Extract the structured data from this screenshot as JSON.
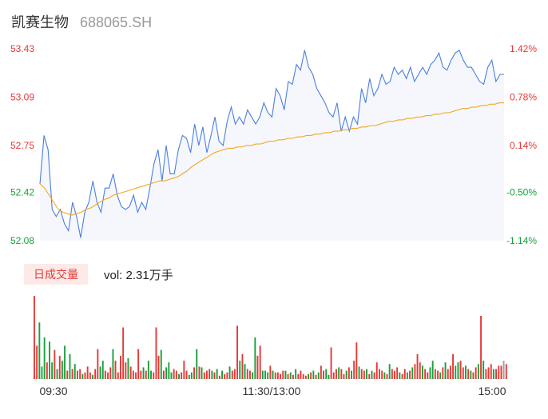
{
  "stock": {
    "name": "凯赛生物",
    "code": "688065.SH"
  },
  "volume_panel": {
    "tab_label": "日成交量",
    "vol_text": "vol: 2.31万手"
  },
  "colors": {
    "price_line": "#4a7fe0",
    "avg_line": "#f5a623",
    "up": "#e53935",
    "down": "#1a9f3c",
    "flat": "#9e9e9e",
    "fill": "#f5f7fd"
  },
  "chart_data": [
    {
      "type": "line",
      "title": "",
      "y_left_ticks": [
        "53.43",
        "53.09",
        "52.75",
        "52.42",
        "52.08"
      ],
      "y_right_ticks": [
        "1.42%",
        "0.78%",
        "0.14%",
        "-0.50%",
        "-1.14%"
      ],
      "y_left_tick_values": [
        53.43,
        53.09,
        52.75,
        52.42,
        52.08
      ],
      "ylim": [
        52.08,
        53.43
      ],
      "prev_close": 52.67,
      "x_ticks": [
        "09:30",
        "11:30/13:00",
        "15:00"
      ],
      "series": [
        {
          "values": [
            52.48,
            52.82,
            52.72,
            52.3,
            52.25,
            52.3,
            52.2,
            52.15,
            52.35,
            52.25,
            52.1,
            52.28,
            52.35,
            52.5,
            52.35,
            52.28,
            52.45,
            52.45,
            52.55,
            52.4,
            52.32,
            52.3,
            52.32,
            52.4,
            52.28,
            52.35,
            52.3,
            52.45,
            52.62,
            52.72,
            52.5,
            52.75,
            52.55,
            52.55,
            52.72,
            52.82,
            52.8,
            52.7,
            52.9,
            52.75,
            52.88,
            52.7,
            52.82,
            52.95,
            52.78,
            52.75,
            52.92,
            53.02,
            52.9,
            52.95,
            52.9,
            53.0,
            52.95,
            52.9,
            52.95,
            53.05,
            52.98,
            52.95,
            53.15,
            53.1,
            53.0,
            53.2,
            53.18,
            53.32,
            53.28,
            53.42,
            53.3,
            53.25,
            53.15,
            53.1,
            53.05,
            52.98,
            52.95,
            53.05,
            52.85,
            52.95,
            52.85,
            52.95,
            52.9,
            53.15,
            53.05,
            53.22,
            53.1,
            53.15,
            53.25,
            53.18,
            53.2,
            53.3,
            53.25,
            53.28,
            53.22,
            53.3,
            53.2,
            53.25,
            53.3,
            53.25,
            53.32,
            53.35,
            53.4,
            53.3,
            53.28,
            53.35,
            53.4,
            53.42,
            53.35,
            53.3,
            53.3,
            53.25,
            53.2,
            53.18,
            53.3,
            53.35,
            53.2,
            53.25,
            53.25
          ]
        },
        {
          "values": [
            52.48,
            52.45,
            52.4,
            52.35,
            52.3,
            52.28,
            52.27,
            52.26,
            52.27,
            52.28,
            52.3,
            52.31,
            52.33,
            52.35,
            52.37,
            52.38,
            52.4,
            52.41,
            52.42,
            52.43,
            52.44,
            52.45,
            52.46,
            52.47,
            52.48,
            52.49,
            52.5,
            52.5,
            52.51,
            52.52,
            52.53,
            52.55,
            52.57,
            52.6,
            52.62,
            52.64,
            52.66,
            52.68,
            52.7,
            52.71,
            52.72,
            52.73,
            52.73,
            52.74,
            52.74,
            52.75,
            52.75,
            52.76,
            52.76,
            52.77,
            52.78,
            52.78,
            52.79,
            52.79,
            52.8,
            52.8,
            52.81,
            52.81,
            52.82,
            52.82,
            52.83,
            52.83,
            52.84,
            52.84,
            52.85,
            52.85,
            52.86,
            52.86,
            52.87,
            52.87,
            52.88,
            52.88,
            52.89,
            52.89,
            52.9,
            52.91,
            52.92,
            52.92,
            52.93,
            52.93,
            52.94,
            52.94,
            52.95,
            52.95,
            52.96,
            52.96,
            52.97,
            52.97,
            52.98,
            52.98,
            52.99,
            53.0,
            53.01,
            53.01,
            53.02,
            53.02,
            53.03,
            53.03,
            53.04,
            53.04,
            53.05,
            53.05
          ]
        }
      ]
    },
    {
      "type": "bar",
      "title": "",
      "values": [
        100,
        40,
        68,
        15,
        50,
        20,
        45,
        20,
        35,
        12,
        28,
        22,
        40,
        10,
        30,
        12,
        18,
        10,
        12,
        6,
        8,
        15,
        8,
        5,
        12,
        36,
        15,
        22,
        10,
        8,
        14,
        36,
        22,
        8,
        28,
        62,
        20,
        25,
        15,
        10,
        8,
        36,
        10,
        14,
        10,
        22,
        10,
        8,
        62,
        28,
        35,
        10,
        14,
        20,
        8,
        12,
        10,
        6,
        8,
        22,
        10,
        5,
        8,
        14,
        36,
        15,
        14,
        8,
        10,
        12,
        10,
        8,
        12,
        4,
        10,
        6,
        8,
        15,
        10,
        12,
        64,
        22,
        30,
        18,
        12,
        10,
        8,
        50,
        28,
        40,
        10,
        10,
        8,
        16,
        10,
        8,
        8,
        6,
        10,
        10,
        6,
        8,
        5,
        12,
        6,
        10,
        6,
        4,
        6,
        8,
        10,
        5,
        8,
        16,
        10,
        12,
        5,
        38,
        8,
        12,
        14,
        12,
        6,
        10,
        14,
        10,
        22,
        44,
        15,
        12,
        10,
        12,
        6,
        10,
        8,
        20,
        12,
        10,
        8,
        6,
        18,
        12,
        10,
        14,
        8,
        6,
        12,
        8,
        10,
        14,
        18,
        30,
        20,
        16,
        12,
        8,
        14,
        22,
        12,
        10,
        8,
        14,
        20,
        12,
        16,
        30,
        16,
        20,
        22,
        14,
        16,
        12,
        10,
        8,
        14,
        18,
        76,
        22,
        12,
        14,
        18,
        12,
        12,
        16,
        16,
        22,
        18
      ],
      "colors": [
        "up",
        "up",
        "down",
        "down",
        "down",
        "up",
        "down",
        "down",
        "up",
        "down",
        "up",
        "down",
        "down",
        "up",
        "down",
        "up",
        "down",
        "up",
        "up",
        "down",
        "up",
        "up",
        "up",
        "down",
        "up",
        "up",
        "down",
        "down",
        "up",
        "up",
        "up",
        "down",
        "up",
        "up",
        "up",
        "up",
        "up",
        "down",
        "up",
        "up",
        "up",
        "up",
        "up",
        "down",
        "up",
        "down",
        "down",
        "up",
        "up",
        "up",
        "down",
        "up",
        "down",
        "down",
        "down",
        "up",
        "up",
        "down",
        "up",
        "up",
        "up",
        "down",
        "down",
        "up",
        "down",
        "up",
        "down",
        "up",
        "up",
        "up",
        "down",
        "up",
        "down",
        "up",
        "down",
        "up",
        "up",
        "down",
        "up",
        "up",
        "up",
        "down",
        "up",
        "down",
        "up",
        "up",
        "down",
        "down",
        "up",
        "up",
        "down",
        "down",
        "down",
        "up",
        "down",
        "up",
        "up",
        "up",
        "up",
        "down",
        "up",
        "down",
        "up",
        "down",
        "up",
        "up",
        "up",
        "up",
        "down",
        "up",
        "down",
        "up",
        "down",
        "up",
        "up",
        "down",
        "down",
        "up",
        "up",
        "up",
        "down",
        "up",
        "up",
        "down",
        "up",
        "down",
        "up",
        "up",
        "down",
        "up",
        "up",
        "down",
        "up",
        "down",
        "up",
        "up",
        "up",
        "up",
        "down",
        "up",
        "down",
        "up",
        "up",
        "up",
        "down",
        "up",
        "up",
        "down",
        "up",
        "down",
        "up",
        "up",
        "up",
        "down",
        "up",
        "up",
        "down",
        "down",
        "up",
        "up",
        "down",
        "up",
        "down",
        "up",
        "up",
        "up",
        "down",
        "down",
        "up",
        "up",
        "down",
        "up",
        "down",
        "up",
        "up",
        "down",
        "up",
        "down",
        "up",
        "up",
        "up",
        "down",
        "up",
        "up",
        "up",
        "flat",
        "up"
      ]
    }
  ]
}
